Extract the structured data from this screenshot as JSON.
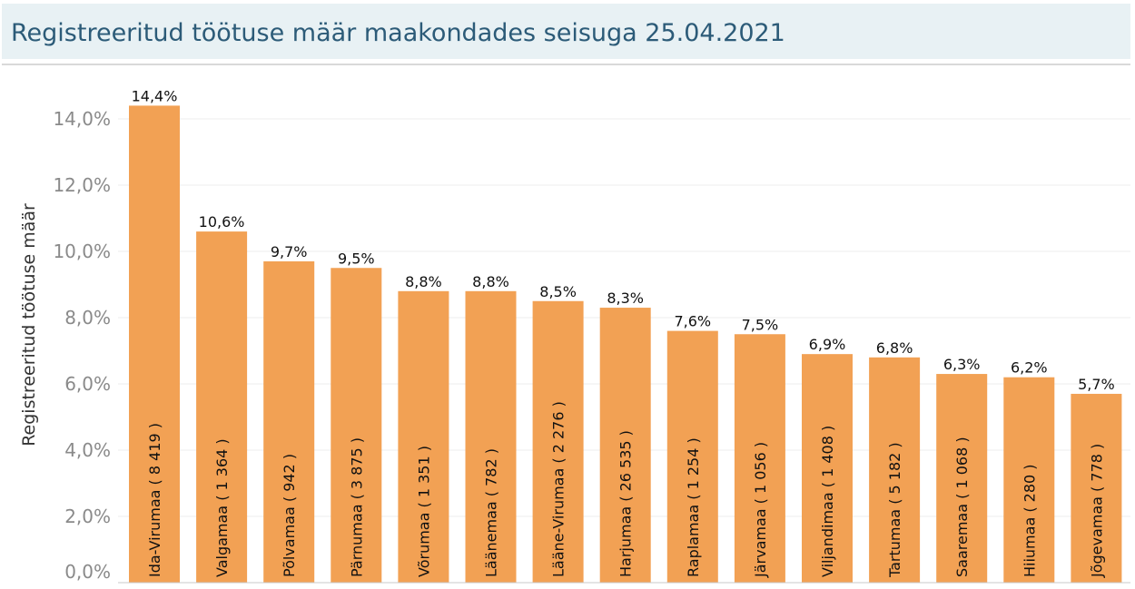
{
  "header": {
    "title": "Registreeritud töötuse määr maakondades seisuga 25.04.2021"
  },
  "colors": {
    "bar": "#f2a154",
    "header_bg": "#e8f1f4",
    "title": "#2c5b78",
    "gridline": "#ececec",
    "tick_text": "#8a8a8a",
    "label_text": "#111111"
  },
  "chart_data": {
    "type": "bar",
    "title": "Registreeritud töötuse määr maakondades seisuga 25.04.2021",
    "xlabel": "",
    "ylabel": "Registreeritud töötuse määr",
    "ylim": [
      0,
      15
    ],
    "yticks": [
      0,
      2,
      4,
      6,
      8,
      10,
      12,
      14
    ],
    "ytick_labels": [
      "0,0%",
      "2,0%",
      "4,0%",
      "6,0%",
      "8,0%",
      "10,0%",
      "12,0%",
      "14,0%"
    ],
    "grid": true,
    "categories": [
      "Ida-Virumaa ( 8 419 )",
      "Valgamaa ( 1 364 )",
      "Põlvamaa ( 942 )",
      "Pärnumaa ( 3 875 )",
      "Võrumaa ( 1 351 )",
      "Läänemaa ( 782 )",
      "Lääne-Virumaa ( 2 276 )",
      "Harjumaa ( 26 535 )",
      "Raplamaa ( 1 254 )",
      "Järvamaa ( 1 056 )",
      "Viljandimaa ( 1 408 )",
      "Tartumaa ( 5 182 )",
      "Saaremaa ( 1 068 )",
      "Hiiumaa ( 280 )",
      "Jõgevamaa ( 778 )"
    ],
    "values": [
      14.4,
      10.6,
      9.7,
      9.5,
      8.8,
      8.8,
      8.5,
      8.3,
      7.6,
      7.5,
      6.9,
      6.8,
      6.3,
      6.2,
      5.7
    ],
    "value_labels": [
      "14,4%",
      "10,6%",
      "9,7%",
      "9,5%",
      "8,8%",
      "8,8%",
      "8,5%",
      "8,3%",
      "7,6%",
      "7,5%",
      "6,9%",
      "6,8%",
      "6,3%",
      "6,2%",
      "5,7%"
    ]
  }
}
